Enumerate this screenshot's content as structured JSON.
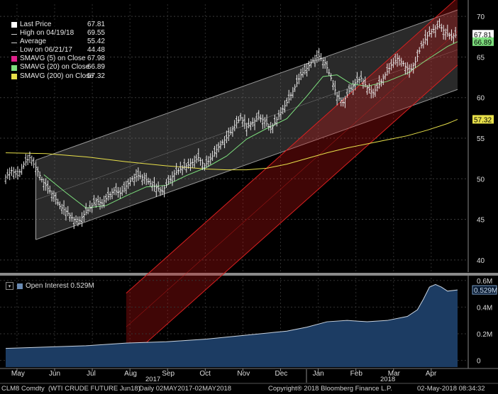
{
  "chart_data": {
    "type": "line",
    "security": "CLM8 Comdty",
    "description": "(WTI CRUDE FUTURE  Jun18)",
    "range_label": "Daily 02MAY2017-02MAY2018",
    "copyright": "Copyright® 2018 Bloomberg Finance L.P.",
    "timestamp": "02-May-2018 08:34:32",
    "x_months": [
      "May",
      "Jun",
      "Jul",
      "Aug",
      "Sep",
      "Oct",
      "Nov",
      "Dec",
      "Jan",
      "Feb",
      "Mar",
      "Apr"
    ],
    "x_years": [
      "2017",
      "2018"
    ],
    "price_axis": {
      "ylim": [
        38.5,
        71.5
      ],
      "ticks": [
        40,
        45,
        50,
        55,
        60,
        65,
        70
      ],
      "grid": true
    },
    "legend": [
      {
        "label": "Last Price",
        "value": "67.81",
        "color": "#ffffff"
      },
      {
        "label": "High on 04/19/18",
        "value": "69.55",
        "color": "#ffffff"
      },
      {
        "label": "Average",
        "value": "55.42",
        "color": "#ffffff"
      },
      {
        "label": "Low on 06/21/17",
        "value": "44.48",
        "color": "#ffffff"
      },
      {
        "label": "SMAVG (5) on Close",
        "value": "67.98",
        "color": "#e0208a"
      },
      {
        "label": "SMAVG (20) on Close",
        "value": "66.89",
        "color": "#7ee07e"
      },
      {
        "label": "SMAVG (200) on Close",
        "value": "57.32",
        "color": "#e8e04a"
      }
    ],
    "right_badges": [
      {
        "value": "67.81",
        "y": 67.81,
        "bg": "#ffffff",
        "fg": "#000000"
      },
      {
        "value": "66.89",
        "y": 66.89,
        "bg": "#7ee07e",
        "fg": "#000000"
      },
      {
        "value": "57.32",
        "y": 57.32,
        "bg": "#e8e04a",
        "fg": "#000000"
      }
    ],
    "price_series": [
      [
        0,
        50.2
      ],
      [
        3,
        51.0
      ],
      [
        6,
        50.4
      ],
      [
        9,
        51.8
      ],
      [
        12,
        52.6
      ],
      [
        15,
        51.4
      ],
      [
        18,
        49.9
      ],
      [
        21,
        48.8
      ],
      [
        24,
        47.9
      ],
      [
        27,
        46.6
      ],
      [
        30,
        46.0
      ],
      [
        33,
        45.2
      ],
      [
        36,
        44.5
      ],
      [
        39,
        45.6
      ],
      [
        42,
        46.4
      ],
      [
        45,
        47.3
      ],
      [
        48,
        47.0
      ],
      [
        51,
        47.8
      ],
      [
        54,
        48.6
      ],
      [
        57,
        48.2
      ],
      [
        60,
        49.1
      ],
      [
        63,
        50.0
      ],
      [
        66,
        50.4
      ],
      [
        69,
        50.1
      ],
      [
        72,
        49.4
      ],
      [
        75,
        48.9
      ],
      [
        78,
        48.5
      ],
      [
        81,
        49.6
      ],
      [
        84,
        50.6
      ],
      [
        87,
        51.2
      ],
      [
        90,
        51.6
      ],
      [
        93,
        52.0
      ],
      [
        96,
        52.6
      ],
      [
        99,
        51.6
      ],
      [
        102,
        52.4
      ],
      [
        105,
        53.6
      ],
      [
        108,
        54.5
      ],
      [
        111,
        55.3
      ],
      [
        114,
        56.6
      ],
      [
        117,
        57.5
      ],
      [
        120,
        56.4
      ],
      [
        123,
        56.9
      ],
      [
        126,
        57.6
      ],
      [
        129,
        57.1
      ],
      [
        132,
        56.1
      ],
      [
        135,
        57.3
      ],
      [
        138,
        58.6
      ],
      [
        141,
        59.8
      ],
      [
        144,
        61.3
      ],
      [
        147,
        62.8
      ],
      [
        150,
        63.6
      ],
      [
        153,
        64.6
      ],
      [
        156,
        65.1
      ],
      [
        159,
        64.3
      ],
      [
        162,
        62.4
      ],
      [
        165,
        60.2
      ],
      [
        168,
        59.4
      ],
      [
        171,
        60.8
      ],
      [
        174,
        61.8
      ],
      [
        177,
        62.4
      ],
      [
        180,
        61.2
      ],
      [
        183,
        60.6
      ],
      [
        186,
        61.6
      ],
      [
        189,
        62.8
      ],
      [
        192,
        64.0
      ],
      [
        195,
        64.8
      ],
      [
        198,
        64.2
      ],
      [
        201,
        63.1
      ],
      [
        204,
        64.4
      ],
      [
        207,
        66.4
      ],
      [
        210,
        67.6
      ],
      [
        213,
        68.4
      ],
      [
        216,
        68.9
      ],
      [
        219,
        68.0
      ],
      [
        222,
        67.5
      ],
      [
        225,
        67.81
      ]
    ],
    "sma20": [
      [
        19,
        50.5
      ],
      [
        30,
        48.3
      ],
      [
        40,
        46.4
      ],
      [
        50,
        46.7
      ],
      [
        60,
        47.9
      ],
      [
        70,
        49.0
      ],
      [
        80,
        49.2
      ],
      [
        90,
        50.4
      ],
      [
        100,
        51.4
      ],
      [
        110,
        52.8
      ],
      [
        120,
        54.9
      ],
      [
        130,
        56.2
      ],
      [
        140,
        57.4
      ],
      [
        150,
        60.2
      ],
      [
        158,
        62.6
      ],
      [
        165,
        62.8
      ],
      [
        172,
        61.7
      ],
      [
        180,
        61.4
      ],
      [
        190,
        62.0
      ],
      [
        200,
        63.0
      ],
      [
        210,
        64.7
      ],
      [
        220,
        66.3
      ],
      [
        225,
        66.89
      ]
    ],
    "sma200": [
      [
        0,
        53.2
      ],
      [
        20,
        53.1
      ],
      [
        40,
        52.7
      ],
      [
        60,
        52.1
      ],
      [
        80,
        51.6
      ],
      [
        100,
        51.2
      ],
      [
        110,
        51.1
      ],
      [
        120,
        51.1
      ],
      [
        130,
        51.3
      ],
      [
        140,
        51.8
      ],
      [
        150,
        52.5
      ],
      [
        160,
        53.2
      ],
      [
        170,
        53.8
      ],
      [
        180,
        54.3
      ],
      [
        190,
        54.8
      ],
      [
        200,
        55.3
      ],
      [
        210,
        56.0
      ],
      [
        220,
        56.8
      ],
      [
        225,
        57.32
      ]
    ],
    "channels": [
      {
        "name": "grey-channel",
        "color": "#9a9a9a",
        "x": [
          15,
          225
        ],
        "upper": [
          52.3,
          70.8
        ],
        "lower": [
          42.5,
          61.0
        ]
      },
      {
        "name": "red-channel",
        "color": "#d82020",
        "x": [
          60,
          225
        ],
        "upper": [
          35.9,
          72.3
        ],
        "lower": [
          27.6,
          64.0
        ]
      }
    ],
    "oi_panel": {
      "label": "Open Interest 0.529M",
      "value_badge": "0.529M",
      "ylim": [
        -0.05,
        0.62
      ],
      "ticks": [
        "0",
        "0.2M",
        "0.4M",
        "0.6M"
      ],
      "tick_values": [
        0,
        0.2,
        0.4,
        0.6
      ],
      "series_color": "#1c3c63",
      "points": [
        [
          0,
          0.09
        ],
        [
          20,
          0.1
        ],
        [
          40,
          0.11
        ],
        [
          60,
          0.13
        ],
        [
          80,
          0.14
        ],
        [
          100,
          0.16
        ],
        [
          120,
          0.19
        ],
        [
          140,
          0.22
        ],
        [
          150,
          0.25
        ],
        [
          160,
          0.29
        ],
        [
          170,
          0.3
        ],
        [
          180,
          0.29
        ],
        [
          190,
          0.3
        ],
        [
          200,
          0.33
        ],
        [
          205,
          0.38
        ],
        [
          208,
          0.46
        ],
        [
          211,
          0.55
        ],
        [
          214,
          0.57
        ],
        [
          217,
          0.55
        ],
        [
          220,
          0.52
        ],
        [
          225,
          0.529
        ]
      ]
    }
  }
}
